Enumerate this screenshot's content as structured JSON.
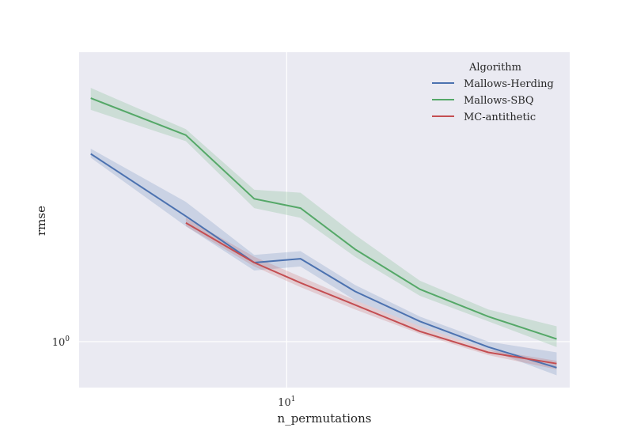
{
  "chart_data": {
    "type": "line",
    "title": "",
    "xlabel": "n_permutations",
    "ylabel": "rmse",
    "x_scale": "log",
    "y_scale": "log",
    "xlim": [
      2.4,
      70
    ],
    "ylim": [
      0.84,
      3.0
    ],
    "x_ticks": [
      {
        "value": 10,
        "base": "10",
        "exp": "1"
      }
    ],
    "y_ticks": [
      {
        "value": 1,
        "base": "10",
        "exp": "0"
      }
    ],
    "grid": true,
    "legend": {
      "title": "Algorithm",
      "placement": "top-right"
    },
    "series": [
      {
        "name": "Mallows-Herding",
        "color": "#4c72b0",
        "x": [
          2.6,
          5,
          8,
          11,
          16,
          25,
          40,
          64
        ],
        "y": [
          2.04,
          1.61,
          1.35,
          1.37,
          1.21,
          1.08,
          0.98,
          0.906
        ],
        "y_low": [
          2.01,
          1.55,
          1.31,
          1.33,
          1.17,
          1.06,
          0.97,
          0.88
        ],
        "y_high": [
          2.08,
          1.7,
          1.39,
          1.41,
          1.24,
          1.1,
          1.0,
          0.96
        ]
      },
      {
        "name": "Mallows-SBQ",
        "color": "#55a868",
        "x": [
          2.6,
          5,
          8,
          11,
          16,
          25,
          40,
          64
        ],
        "y": [
          2.52,
          2.19,
          1.72,
          1.66,
          1.42,
          1.22,
          1.1,
          1.01
        ],
        "y_low": [
          2.41,
          2.14,
          1.66,
          1.6,
          1.38,
          1.19,
          1.08,
          0.98
        ],
        "y_high": [
          2.62,
          2.24,
          1.78,
          1.76,
          1.5,
          1.26,
          1.13,
          1.06
        ]
      },
      {
        "name": "MC-antithetic",
        "color": "#c44e52",
        "x": [
          5,
          8,
          11,
          16,
          25,
          40,
          64
        ],
        "y": [
          1.57,
          1.35,
          1.25,
          1.15,
          1.04,
          0.96,
          0.92
        ],
        "y_low": [
          1.55,
          1.33,
          1.23,
          1.13,
          1.03,
          0.95,
          0.9
        ],
        "y_high": [
          1.6,
          1.38,
          1.28,
          1.17,
          1.06,
          0.97,
          0.93
        ]
      }
    ]
  }
}
